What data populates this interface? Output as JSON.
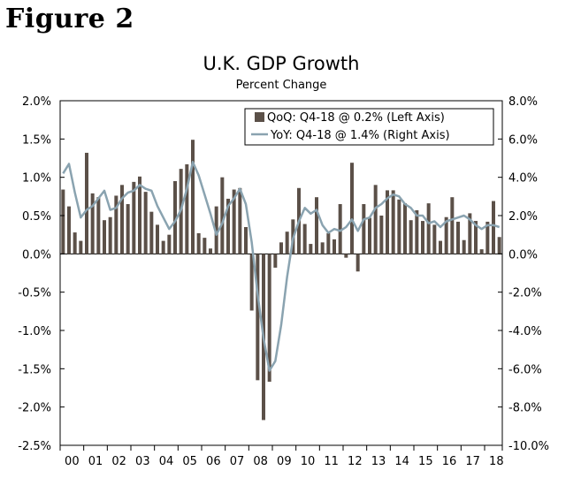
{
  "figure_label": "Figure 2",
  "chart_data": {
    "type": "bar+line",
    "title": "U.K. GDP Growth",
    "subtitle": "Percent Change",
    "left_axis": {
      "min": -2.5,
      "max": 2.0,
      "step": 0.5,
      "tick_labels": [
        "2.0%",
        "1.5%",
        "1.0%",
        "0.5%",
        "0.0%",
        "-0.5%",
        "-1.0%",
        "-1.5%",
        "-2.0%",
        "-2.5%"
      ]
    },
    "right_axis": {
      "min": -10.0,
      "max": 8.0,
      "step": 2.0,
      "tick_labels": [
        "8.0%",
        "6.0%",
        "4.0%",
        "2.0%",
        "0.0%",
        "-2.0%",
        "-4.0%",
        "-6.0%",
        "-8.0%",
        "-10.0%"
      ]
    },
    "x_tick_labels": [
      "00",
      "01",
      "02",
      "03",
      "04",
      "05",
      "06",
      "07",
      "08",
      "09",
      "10",
      "11",
      "12",
      "13",
      "14",
      "15",
      "16",
      "17",
      "18"
    ],
    "legend": {
      "position": "top-right",
      "entries": [
        {
          "name": "QoQ: Q4-18 @ 0.2% (Left Axis)",
          "type": "bar",
          "color": "#5b5048"
        },
        {
          "name": "YoY: Q4-18 @ 1.4% (Right Axis)",
          "type": "line",
          "color": "#8aa3b0"
        }
      ]
    },
    "series": [
      {
        "name": "QoQ",
        "axis": "left",
        "type": "bar",
        "color": "#5b5048",
        "values": [
          0.84,
          0.62,
          0.28,
          0.17,
          1.32,
          0.79,
          0.74,
          0.44,
          0.48,
          0.76,
          0.9,
          0.65,
          0.94,
          1.01,
          0.81,
          0.55,
          0.38,
          0.17,
          0.25,
          0.95,
          1.11,
          1.17,
          1.49,
          0.27,
          0.21,
          0.07,
          0.62,
          1.0,
          0.72,
          0.84,
          0.86,
          0.35,
          -0.74,
          -1.65,
          -2.17,
          -1.67,
          -0.18,
          0.15,
          0.29,
          0.45,
          0.86,
          0.39,
          0.13,
          0.74,
          0.15,
          0.27,
          0.19,
          0.65,
          -0.05,
          1.19,
          -0.23,
          0.65,
          0.47,
          0.9,
          0.5,
          0.83,
          0.83,
          0.71,
          0.66,
          0.44,
          0.57,
          0.43,
          0.66,
          0.38,
          0.17,
          0.48,
          0.74,
          0.42,
          0.18,
          0.53,
          0.43,
          0.06,
          0.42,
          0.69,
          0.22
        ]
      },
      {
        "name": "YoY",
        "axis": "right",
        "type": "line",
        "color": "#8aa3b0",
        "values": [
          4.2,
          4.7,
          3.2,
          1.9,
          2.3,
          2.5,
          2.9,
          3.3,
          2.3,
          2.4,
          2.9,
          3.2,
          3.3,
          3.6,
          3.4,
          3.3,
          2.5,
          1.9,
          1.3,
          1.7,
          2.3,
          3.4,
          4.8,
          4.1,
          3.1,
          2.1,
          1.0,
          1.6,
          2.5,
          2.9,
          3.4,
          2.6,
          0.6,
          -2.1,
          -4.4,
          -6.1,
          -5.6,
          -3.7,
          -1.2,
          0.8,
          1.7,
          2.4,
          2.1,
          2.3,
          1.5,
          1.1,
          1.3,
          1.2,
          1.4,
          1.8,
          1.2,
          1.8,
          1.9,
          2.4,
          2.6,
          2.9,
          3.1,
          3.0,
          2.6,
          2.4,
          2.0,
          2.0,
          1.6,
          1.7,
          1.4,
          1.7,
          1.8,
          1.9,
          2.0,
          1.8,
          1.5,
          1.3,
          1.5,
          1.5,
          1.4
        ]
      }
    ]
  }
}
